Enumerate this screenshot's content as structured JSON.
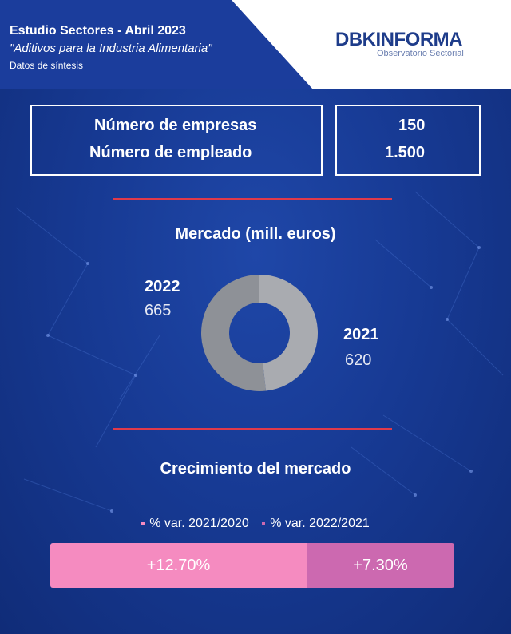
{
  "header": {
    "title": "Estudio Sectores - Abril 2023",
    "subtitle": "\"Aditivos para la Industria Alimentaria\"",
    "note": "Datos de síntesis"
  },
  "logo": {
    "dbk": "DBK",
    "informa": "INFORMA",
    "tagline": "Observatorio Sectorial"
  },
  "stats": {
    "companies_label": "Número de empresas",
    "companies_value": "150",
    "employees_label": "Número de empleado",
    "employees_value": "1.500"
  },
  "market": {
    "title": "Mercado (mill. euros)"
  },
  "growth": {
    "title": "Crecimiento del mercado"
  },
  "colors": {
    "donut_2022": "#8e9197",
    "donut_2021": "#a9abb0",
    "bar_2021_2020": "#f58bc0",
    "bar_2022_2021": "#cc69b0"
  },
  "chart_data": [
    {
      "type": "pie",
      "title": "Mercado (mill. euros)",
      "categories": [
        "2022",
        "2021"
      ],
      "labels": [
        "665",
        "620"
      ],
      "values": [
        665,
        620
      ]
    },
    {
      "type": "bar",
      "title": "Crecimiento del mercado",
      "categories": [
        "% var. 2021/2020",
        "% var. 2022/2021"
      ],
      "labels": [
        "+12.70%",
        "+7.30%"
      ],
      "values": [
        12.7,
        7.3
      ]
    }
  ]
}
